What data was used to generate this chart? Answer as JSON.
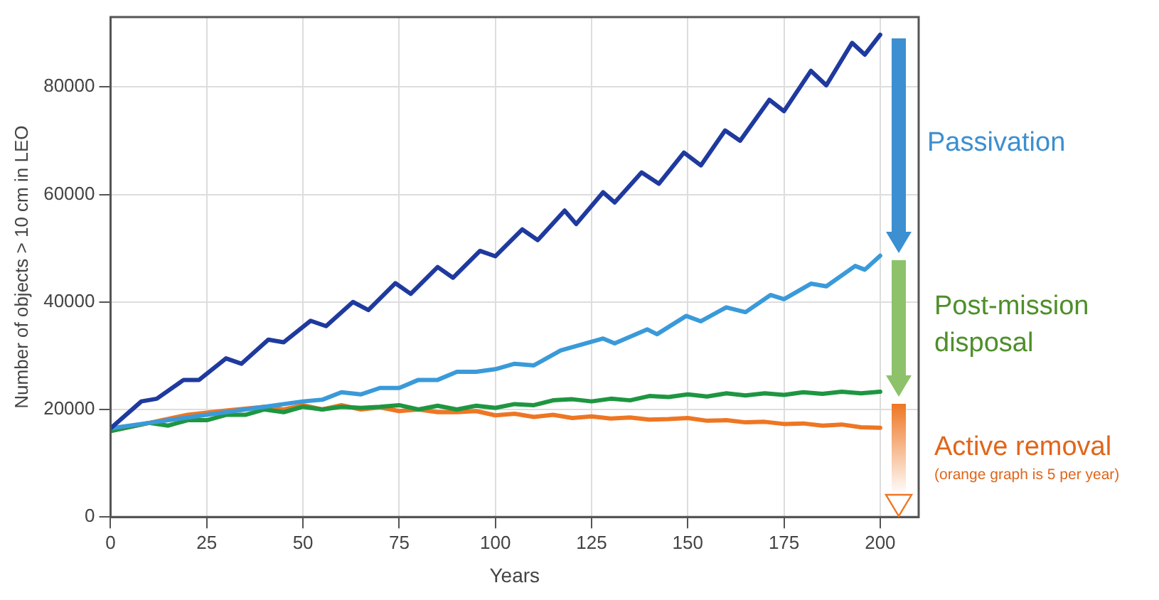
{
  "chart_data": {
    "type": "line",
    "xlabel": "Years",
    "ylabel": "Number of objects > 10 cm in LEO",
    "xlim": [
      0,
      210
    ],
    "ylim": [
      0,
      93000
    ],
    "xticks": [
      0,
      25,
      50,
      75,
      100,
      125,
      150,
      175,
      200
    ],
    "yticks": [
      0,
      20000,
      40000,
      60000,
      80000
    ],
    "grid": true,
    "legend": false,
    "marker": "none",
    "line_style": "solid",
    "annotations": [
      "Passivation",
      "Post-mission disposal",
      "Active removal",
      "(orange graph is 5 per year)"
    ],
    "series": [
      {
        "color": "#1f3a9e",
        "x": [
          0,
          8,
          12,
          19,
          23,
          30,
          34,
          41,
          45,
          52,
          56,
          63,
          67,
          74,
          78,
          85,
          89,
          96,
          100,
          107,
          111,
          118,
          121,
          128,
          131,
          138,
          142.5,
          149,
          153.4,
          159.7,
          163.6,
          171.2,
          175,
          182,
          186,
          192.7,
          196,
          200
        ],
        "values": [
          16500,
          21500,
          22000,
          25500,
          25500,
          29500,
          28500,
          33000,
          32500,
          36500,
          35500,
          40000,
          38500,
          43500,
          41500,
          46500,
          44500,
          49500,
          48500,
          53500,
          51500,
          57000,
          54500,
          60400,
          58500,
          64100,
          62000,
          67800,
          65400,
          71900,
          70000,
          77600,
          75500,
          83000,
          80300,
          88200,
          86000,
          89700
        ]
      },
      {
        "color": "#3a9ad9",
        "x": [
          0,
          10,
          20,
          30,
          40,
          50,
          55,
          60,
          65,
          70,
          75,
          80,
          85,
          90,
          95,
          100,
          105,
          110,
          117,
          128,
          131,
          139.5,
          142,
          149.6,
          153.4,
          160,
          165,
          171.5,
          175,
          182,
          186,
          193.5,
          196,
          200
        ],
        "values": [
          16500,
          17500,
          18500,
          19500,
          20500,
          21500,
          21800,
          23200,
          22800,
          24000,
          24000,
          25500,
          25500,
          27000,
          27000,
          27500,
          28500,
          28200,
          31000,
          33200,
          32300,
          34900,
          34000,
          37400,
          36400,
          39000,
          38100,
          41300,
          40500,
          43400,
          42900,
          46700,
          46000,
          48600
        ]
      },
      {
        "color": "#1e9641",
        "x": [
          0,
          10,
          15,
          20,
          25,
          30,
          35,
          40,
          45,
          50,
          55,
          60,
          65,
          70,
          75,
          80,
          85,
          90,
          95,
          100,
          105,
          110,
          115,
          120,
          125,
          130,
          135,
          140,
          145,
          150,
          155,
          160,
          165,
          170,
          175,
          180,
          185,
          190,
          195,
          200
        ],
        "values": [
          16000,
          17500,
          17000,
          18000,
          18000,
          19000,
          19000,
          20000,
          19500,
          20500,
          20000,
          20500,
          20300,
          20500,
          20800,
          20000,
          20700,
          20000,
          20700,
          20300,
          21000,
          20800,
          21700,
          21900,
          21500,
          22000,
          21700,
          22500,
          22300,
          22800,
          22400,
          23000,
          22600,
          23000,
          22700,
          23200,
          22900,
          23300,
          23000,
          23300
        ]
      },
      {
        "color": "#ee7623",
        "x": [
          0,
          10,
          20,
          30,
          40,
          45,
          50,
          55,
          60,
          65,
          70,
          75,
          80,
          85,
          90,
          95,
          100,
          105,
          110,
          115,
          120,
          125,
          130,
          135,
          140,
          145,
          150,
          155,
          160,
          165,
          170,
          175,
          180,
          185,
          190,
          195,
          200
        ],
        "values": [
          16000,
          17500,
          19000,
          19800,
          20500,
          20000,
          20800,
          20000,
          20800,
          20000,
          20400,
          19700,
          20000,
          19500,
          19500,
          19700,
          18900,
          19200,
          18600,
          19000,
          18400,
          18700,
          18300,
          18500,
          18100,
          18200,
          18400,
          17900,
          18000,
          17600,
          17700,
          17300,
          17400,
          17000,
          17200,
          16700,
          16600
        ]
      }
    ]
  }
}
